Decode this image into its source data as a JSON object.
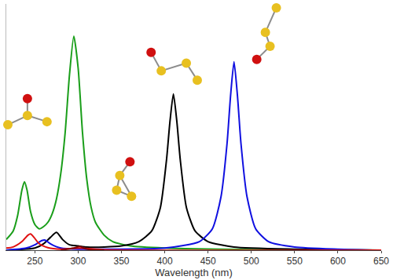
{
  "chart_data": {
    "type": "line",
    "x_label": "Wavelength (nm)",
    "xlim": [
      217,
      650
    ],
    "xticks": [
      250,
      300,
      350,
      400,
      450,
      500,
      550,
      600,
      650
    ],
    "ylim": [
      0,
      1.15
    ],
    "tick_labels": "x",
    "grid": false,
    "series": [
      {
        "color": "#1a9e1a",
        "x": [
          217,
          225,
          230,
          235,
          238,
          241,
          245,
          250,
          255,
          260,
          265,
          270,
          275,
          280,
          285,
          290,
          295,
          300,
          305,
          310,
          315,
          320,
          330,
          340,
          360,
          400,
          500,
          650
        ],
        "values": [
          0.05,
          0.09,
          0.16,
          0.28,
          0.32,
          0.28,
          0.18,
          0.12,
          0.1,
          0.11,
          0.13,
          0.17,
          0.24,
          0.36,
          0.55,
          0.82,
          1.0,
          0.85,
          0.55,
          0.33,
          0.2,
          0.13,
          0.07,
          0.04,
          0.02,
          0.01,
          0.003,
          0
        ]
      },
      {
        "color": "#000000",
        "x": [
          217,
          250,
          260,
          268,
          275,
          282,
          290,
          300,
          310,
          330,
          350,
          370,
          385,
          395,
          402,
          406,
          410,
          414,
          418,
          425,
          435,
          450,
          480,
          550,
          650
        ],
        "values": [
          0,
          0.01,
          0.03,
          0.06,
          0.083,
          0.05,
          0.025,
          0.02,
          0.015,
          0.015,
          0.02,
          0.04,
          0.09,
          0.2,
          0.42,
          0.6,
          0.73,
          0.6,
          0.42,
          0.2,
          0.09,
          0.04,
          0.015,
          0.005,
          0
        ]
      },
      {
        "color": "#1010e0",
        "x": [
          217,
          240,
          250,
          258,
          262,
          268,
          280,
          300,
          400,
          440,
          455,
          465,
          472,
          476,
          480,
          484,
          488,
          495,
          505,
          520,
          550,
          600,
          650
        ],
        "values": [
          0,
          0.01,
          0.025,
          0.045,
          0.047,
          0.03,
          0.01,
          0.005,
          0.01,
          0.04,
          0.1,
          0.25,
          0.5,
          0.72,
          0.88,
          0.72,
          0.5,
          0.25,
          0.1,
          0.04,
          0.015,
          0.005,
          0
        ]
      },
      {
        "color": "#e01010",
        "x": [
          217,
          225,
          235,
          242,
          245,
          249,
          255,
          265,
          280,
          300,
          310,
          330,
          650
        ],
        "values": [
          0.01,
          0.015,
          0.04,
          0.07,
          0.076,
          0.06,
          0.03,
          0.012,
          0.005,
          0.01,
          0.008,
          0.002,
          0
        ]
      },
      {
        "color": "#800000",
        "x": [
          280,
          295,
          302,
          310,
          330
        ],
        "values": [
          0,
          0.01,
          0.017,
          0.005,
          0
        ]
      }
    ]
  }
}
